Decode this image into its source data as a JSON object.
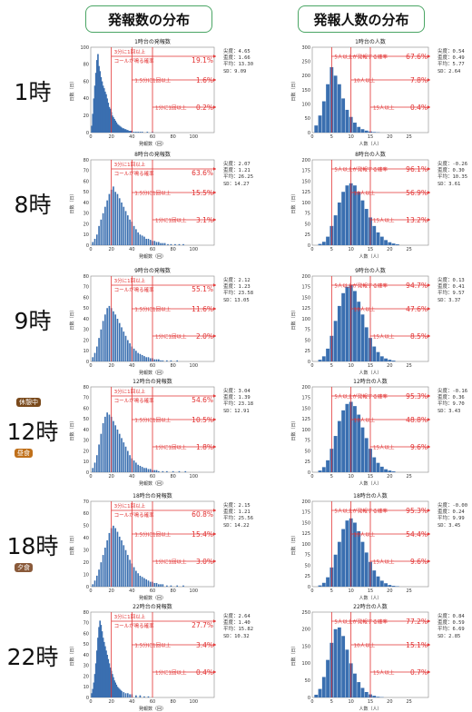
{
  "headers": {
    "left": "発報数の分布",
    "right": "発報人数の分布"
  },
  "badges": {
    "kyukei": "休憩中",
    "chushoku": "昼食",
    "yushoku": "夕食"
  },
  "stat_labels": [
    "尖度",
    "歪度",
    "平均",
    "SD"
  ],
  "left_axis": {
    "xlabel": "発報数（回）",
    "ylabel": "日数（日）"
  },
  "right_axis": {
    "xlabel": "人数（人）",
    "ylabel": "日数（日）"
  },
  "rows": [
    {
      "hour_label": "1時",
      "left": {
        "title": "1時台の発報数",
        "kurtosis": "4.65",
        "skewness": "1.66",
        "mean": "13.30",
        "sd": "9.09",
        "ann1a": "3分に1回以上",
        "ann1b": "コールが鳴る確率",
        "p1": "19.1%",
        "ann2": "1.5分に1回以上",
        "p2": "1.6%",
        "ann3": "1分に1回以上",
        "p3": "0.2%"
      },
      "right": {
        "title": "1時台の人数",
        "kurtosis": "0.54",
        "skewness": "0.49",
        "mean": "5.77",
        "sd": "2.64",
        "ann1": "5人以上が発報する確率",
        "p1": "67.6%",
        "ann2": "10人以上",
        "p2": "7.8%",
        "ann3": "15人以上",
        "p3": "0.4%"
      }
    },
    {
      "hour_label": "8時",
      "left": {
        "title": "8時台の発報数",
        "kurtosis": "2.07",
        "skewness": "1.21",
        "mean": "26.25",
        "sd": "14.27",
        "ann1a": "3分に1回以上",
        "ann1b": "コールが鳴る確率",
        "p1": "63.6%",
        "ann2": "1.5分に1回以上",
        "p2": "15.5%",
        "ann3": "1分に1回以上",
        "p3": "3.1%"
      },
      "right": {
        "title": "8時台の人数",
        "kurtosis": "-0.26",
        "skewness": "0.30",
        "mean": "10.35",
        "sd": "3.61",
        "ann1": "5人以上が発報する確率",
        "p1": "96.1%",
        "ann2": "10人以上",
        "p2": "56.9%",
        "ann3": "15人以上",
        "p3": "13.2%"
      }
    },
    {
      "hour_label": "9時",
      "left": {
        "title": "9時台の発報数",
        "kurtosis": "2.12",
        "skewness": "1.23",
        "mean": "23.58",
        "sd": "13.05",
        "ann1a": "3分に1回以上",
        "ann1b": "コールが鳴る確率",
        "p1": "55.1%",
        "ann2": "1.5分に1回以上",
        "p2": "11.6%",
        "ann3": "1分に1回以上",
        "p3": "2.0%"
      },
      "right": {
        "title": "9時台の人数",
        "kurtosis": "0.13",
        "skewness": "0.41",
        "mean": "9.57",
        "sd": "3.37",
        "ann1": "5人以上が発報する確率",
        "p1": "94.7%",
        "ann2": "10人以上",
        "p2": "47.6%",
        "ann3": "15人以上",
        "p3": "8.5%"
      }
    },
    {
      "hour_label": "12時",
      "left": {
        "title": "12時台の発報数",
        "kurtosis": "3.04",
        "skewness": "1.39",
        "mean": "23.18",
        "sd": "12.91",
        "ann1a": "3分に1回以上",
        "ann1b": "コールが鳴る確率",
        "p1": "54.6%",
        "ann2": "1.5分に1回以上",
        "p2": "10.5%",
        "ann3": "1分に1回以上",
        "p3": "1.8%"
      },
      "right": {
        "title": "12時台の人数",
        "kurtosis": "-0.16",
        "skewness": "0.36",
        "mean": "9.70",
        "sd": "3.43",
        "ann1": "5人以上が発報する確率",
        "p1": "95.3%",
        "ann2": "10人以上",
        "p2": "48.8%",
        "ann3": "15人以上",
        "p3": "9.6%"
      }
    },
    {
      "hour_label": "18時",
      "left": {
        "title": "18時台の発報数",
        "kurtosis": "2.15",
        "skewness": "1.21",
        "mean": "25.56",
        "sd": "14.22",
        "ann1a": "3分に1回以上",
        "ann1b": "コールが鳴る確率",
        "p1": "60.8%",
        "ann2": "1.5分に1回以上",
        "p2": "15.4%",
        "ann3": "1分に1回以上",
        "p3": "3.0%"
      },
      "right": {
        "title": "18時台の人数",
        "kurtosis": "-0.00",
        "skewness": "0.24",
        "mean": "9.99",
        "sd": "3.45",
        "ann1": "5人以上が発報する確率",
        "p1": "95.3%",
        "ann2": "10人以上",
        "p2": "54.4%",
        "ann3": "15人以上",
        "p3": "9.6%"
      }
    },
    {
      "hour_label": "22時",
      "left": {
        "title": "22時台の発報数",
        "kurtosis": "2.64",
        "skewness": "1.40",
        "mean": "15.82",
        "sd": "10.32",
        "ann1a": "3分に1回以上",
        "ann1b": "コールが鳴る確率",
        "p1": "27.7%",
        "ann2": "1.5分に1回以上",
        "p2": "3.4%",
        "ann3": "1分に1回以上",
        "p3": "0.4%"
      },
      "right": {
        "title": "22時台の人数",
        "kurtosis": "0.84",
        "skewness": "0.59",
        "mean": "6.69",
        "sd": "2.85",
        "ann1": "5人以上が発報する確率",
        "p1": "77.2%",
        "ann2": "10人以上",
        "p2": "15.1%",
        "ann3": "15人以上",
        "p3": "0.7%"
      }
    }
  ],
  "chart_data": [
    {
      "type": "bar",
      "title": "1時台の発報数",
      "xlabel": "発報数（回）",
      "ylabel": "日数（日）",
      "xlim": [
        0,
        120
      ],
      "ylim": [
        0,
        100
      ],
      "xticks": [
        0,
        20,
        40,
        60,
        80,
        100
      ],
      "yticks": [
        0,
        20,
        40,
        60,
        80,
        100
      ],
      "thresholds": [
        20,
        40,
        60
      ],
      "x": [
        1,
        2,
        3,
        4,
        5,
        6,
        7,
        8,
        9,
        10,
        11,
        12,
        13,
        14,
        15,
        16,
        17,
        18,
        19,
        20,
        21,
        22,
        23,
        24,
        25,
        26,
        27,
        28,
        29,
        30,
        31,
        32,
        33,
        34,
        35,
        36,
        37,
        38,
        39,
        40,
        42,
        44,
        46,
        48,
        50,
        55,
        60
      ],
      "values": [
        8,
        22,
        40,
        55,
        70,
        85,
        92,
        78,
        72,
        65,
        60,
        55,
        52,
        48,
        45,
        40,
        35,
        30,
        28,
        24,
        20,
        18,
        16,
        14,
        12,
        10,
        9,
        8,
        7,
        6,
        5,
        5,
        4,
        4,
        3,
        3,
        2,
        2,
        2,
        2,
        1,
        1,
        1,
        1,
        1,
        1,
        1
      ]
    },
    {
      "type": "bar",
      "title": "1時台の人数",
      "xlabel": "人数（人）",
      "ylabel": "日数（日）",
      "xlim": [
        0,
        30
      ],
      "ylim": [
        0,
        300
      ],
      "xticks": [
        0,
        5,
        10,
        15,
        20,
        25
      ],
      "yticks": [
        0,
        50,
        100,
        150,
        200,
        250,
        300
      ],
      "thresholds": [
        5,
        10,
        15
      ],
      "x": [
        1,
        2,
        3,
        4,
        5,
        6,
        7,
        8,
        9,
        10,
        11,
        12,
        13,
        14,
        15,
        16,
        17
      ],
      "values": [
        25,
        60,
        110,
        170,
        230,
        200,
        170,
        120,
        80,
        55,
        35,
        20,
        12,
        7,
        4,
        2,
        1
      ]
    },
    {
      "type": "bar",
      "title": "8時台の発報数",
      "xlabel": "発報数（回）",
      "ylabel": "日数（日）",
      "xlim": [
        0,
        120
      ],
      "ylim": [
        0,
        80
      ],
      "xticks": [
        0,
        20,
        40,
        60,
        80,
        100
      ],
      "yticks": [
        0,
        10,
        20,
        30,
        40,
        50,
        60,
        70,
        80
      ],
      "thresholds": [
        20,
        40,
        60
      ],
      "x": [
        2,
        4,
        6,
        8,
        10,
        12,
        14,
        16,
        18,
        20,
        22,
        24,
        26,
        28,
        30,
        32,
        34,
        36,
        38,
        40,
        42,
        44,
        46,
        48,
        50,
        52,
        54,
        56,
        58,
        60,
        62,
        64,
        66,
        68,
        70,
        72,
        75,
        78,
        82,
        86,
        90
      ],
      "values": [
        3,
        6,
        10,
        18,
        24,
        30,
        36,
        42,
        48,
        52,
        55,
        50,
        48,
        44,
        40,
        36,
        32,
        28,
        24,
        22,
        18,
        15,
        12,
        10,
        9,
        8,
        6,
        6,
        5,
        4,
        4,
        3,
        3,
        2,
        2,
        2,
        1,
        1,
        1,
        1,
        1
      ]
    },
    {
      "type": "bar",
      "title": "8時台の人数",
      "xlabel": "人数（人）",
      "ylabel": "日数（日）",
      "xlim": [
        0,
        30
      ],
      "ylim": [
        0,
        200
      ],
      "xticks": [
        0,
        5,
        10,
        15,
        20,
        25
      ],
      "yticks": [
        0,
        25,
        50,
        75,
        100,
        125,
        150,
        175,
        200
      ],
      "thresholds": [
        5,
        10,
        15
      ],
      "x": [
        2,
        3,
        4,
        5,
        6,
        7,
        8,
        9,
        10,
        11,
        12,
        13,
        14,
        15,
        16,
        17,
        18,
        19,
        20,
        21,
        22
      ],
      "values": [
        3,
        8,
        20,
        45,
        70,
        100,
        125,
        140,
        145,
        140,
        125,
        105,
        85,
        65,
        45,
        30,
        20,
        12,
        7,
        4,
        2
      ]
    },
    {
      "type": "bar",
      "title": "9時台の発報数",
      "xlabel": "発報数（回）",
      "ylabel": "日数（日）",
      "xlim": [
        0,
        120
      ],
      "ylim": [
        0,
        80
      ],
      "xticks": [
        0,
        20,
        40,
        60,
        80,
        100
      ],
      "yticks": [
        0,
        10,
        20,
        30,
        40,
        50,
        60,
        70,
        80
      ],
      "thresholds": [
        20,
        40,
        60
      ],
      "x": [
        2,
        4,
        6,
        8,
        10,
        12,
        14,
        16,
        18,
        20,
        22,
        24,
        26,
        28,
        30,
        32,
        34,
        36,
        38,
        40,
        42,
        44,
        46,
        48,
        50,
        52,
        54,
        56,
        58,
        60,
        62,
        64,
        66,
        68,
        70,
        74,
        78,
        84
      ],
      "values": [
        4,
        8,
        14,
        22,
        30,
        38,
        44,
        50,
        52,
        50,
        47,
        44,
        40,
        36,
        32,
        28,
        24,
        20,
        17,
        14,
        12,
        10,
        8,
        7,
        6,
        5,
        4,
        4,
        3,
        3,
        2,
        2,
        2,
        1,
        1,
        1,
        1,
        1
      ]
    },
    {
      "type": "bar",
      "title": "9時台の人数",
      "xlabel": "人数（人）",
      "ylabel": "日数（日）",
      "xlim": [
        0,
        30
      ],
      "ylim": [
        0,
        200
      ],
      "xticks": [
        0,
        5,
        10,
        15,
        20,
        25
      ],
      "yticks": [
        0,
        25,
        50,
        75,
        100,
        125,
        150,
        175,
        200
      ],
      "thresholds": [
        5,
        10,
        15
      ],
      "x": [
        2,
        3,
        4,
        5,
        6,
        7,
        8,
        9,
        10,
        11,
        12,
        13,
        14,
        15,
        16,
        17,
        18,
        19,
        20,
        21
      ],
      "values": [
        4,
        12,
        30,
        60,
        95,
        130,
        160,
        175,
        180,
        165,
        140,
        110,
        80,
        55,
        35,
        22,
        12,
        7,
        4,
        2
      ]
    },
    {
      "type": "bar",
      "title": "12時台の発報数",
      "xlabel": "発報数（回）",
      "ylabel": "日数（日）",
      "xlim": [
        0,
        120
      ],
      "ylim": [
        0,
        80
      ],
      "xticks": [
        0,
        20,
        40,
        60,
        80,
        100
      ],
      "yticks": [
        0,
        10,
        20,
        30,
        40,
        50,
        60,
        70,
        80
      ],
      "thresholds": [
        20,
        40,
        60
      ],
      "x": [
        2,
        4,
        6,
        8,
        10,
        12,
        14,
        16,
        18,
        20,
        22,
        24,
        26,
        28,
        30,
        32,
        34,
        36,
        38,
        40,
        42,
        44,
        46,
        48,
        50,
        52,
        54,
        56,
        58,
        60,
        62,
        64,
        66,
        70,
        74,
        80,
        86,
        92
      ],
      "values": [
        4,
        9,
        16,
        26,
        36,
        46,
        52,
        56,
        54,
        52,
        48,
        44,
        40,
        36,
        32,
        28,
        24,
        20,
        16,
        13,
        11,
        9,
        7,
        6,
        5,
        4,
        4,
        3,
        3,
        2,
        2,
        2,
        1,
        1,
        1,
        1,
        1,
        1
      ]
    },
    {
      "type": "bar",
      "title": "12時台の人数",
      "xlabel": "人数（人）",
      "ylabel": "日数（日）",
      "xlim": [
        0,
        30
      ],
      "ylim": [
        0,
        200
      ],
      "xticks": [
        0,
        5,
        10,
        15,
        20,
        25
      ],
      "yticks": [
        0,
        25,
        50,
        75,
        100,
        125,
        150,
        175,
        200
      ],
      "thresholds": [
        5,
        10,
        15
      ],
      "x": [
        2,
        3,
        4,
        5,
        6,
        7,
        8,
        9,
        10,
        11,
        12,
        13,
        14,
        15,
        16,
        17,
        18,
        19,
        20,
        21
      ],
      "values": [
        4,
        12,
        28,
        55,
        85,
        120,
        145,
        160,
        165,
        155,
        135,
        105,
        80,
        55,
        35,
        22,
        13,
        7,
        4,
        2
      ]
    },
    {
      "type": "bar",
      "title": "18時台の発報数",
      "xlabel": "発報数（回）",
      "ylabel": "日数（日）",
      "xlim": [
        0,
        120
      ],
      "ylim": [
        0,
        70
      ],
      "xticks": [
        0,
        20,
        40,
        60,
        80,
        100
      ],
      "yticks": [
        0,
        10,
        20,
        30,
        40,
        50,
        60,
        70
      ],
      "thresholds": [
        20,
        40,
        60
      ],
      "x": [
        2,
        4,
        6,
        8,
        10,
        12,
        14,
        16,
        18,
        20,
        22,
        24,
        26,
        28,
        30,
        32,
        34,
        36,
        38,
        40,
        42,
        44,
        46,
        48,
        50,
        52,
        54,
        56,
        58,
        60,
        62,
        64,
        66,
        68,
        70,
        74,
        78,
        84,
        90
      ],
      "values": [
        2,
        5,
        9,
        14,
        20,
        26,
        32,
        38,
        44,
        48,
        50,
        48,
        45,
        41,
        38,
        34,
        30,
        26,
        22,
        19,
        16,
        13,
        11,
        9,
        8,
        7,
        6,
        5,
        4,
        4,
        3,
        3,
        2,
        2,
        2,
        1,
        1,
        1,
        1
      ]
    },
    {
      "type": "bar",
      "title": "18時台の人数",
      "xlabel": "人数（人）",
      "ylabel": "日数（日）",
      "xlim": [
        0,
        30
      ],
      "ylim": [
        0,
        200
      ],
      "xticks": [
        0,
        5,
        10,
        15,
        20,
        25
      ],
      "yticks": [
        0,
        25,
        50,
        75,
        100,
        125,
        150,
        175,
        200
      ],
      "thresholds": [
        5,
        10,
        15
      ],
      "x": [
        2,
        3,
        4,
        5,
        6,
        7,
        8,
        9,
        10,
        11,
        12,
        13,
        14,
        15,
        16,
        17,
        18,
        19,
        20,
        21,
        22
      ],
      "values": [
        3,
        9,
        22,
        45,
        75,
        105,
        135,
        155,
        160,
        150,
        130,
        105,
        80,
        58,
        38,
        24,
        14,
        8,
        4,
        2,
        1
      ]
    },
    {
      "type": "bar",
      "title": "22時台の発報数",
      "xlabel": "発報数（回）",
      "ylabel": "日数（日）",
      "xlim": [
        0,
        120
      ],
      "ylim": [
        0,
        80
      ],
      "xticks": [
        0,
        20,
        40,
        60,
        80,
        100
      ],
      "yticks": [
        0,
        10,
        20,
        30,
        40,
        50,
        60,
        70,
        80
      ],
      "thresholds": [
        20,
        40,
        60
      ],
      "x": [
        1,
        2,
        3,
        4,
        5,
        6,
        7,
        8,
        9,
        10,
        11,
        12,
        13,
        14,
        15,
        16,
        17,
        18,
        19,
        20,
        21,
        22,
        23,
        24,
        25,
        26,
        27,
        28,
        29,
        30,
        32,
        34,
        36,
        38,
        40,
        44,
        48,
        52,
        56
      ],
      "values": [
        4,
        8,
        14,
        22,
        32,
        44,
        56,
        66,
        72,
        68,
        62,
        56,
        52,
        48,
        44,
        40,
        36,
        32,
        28,
        25,
        22,
        19,
        16,
        14,
        12,
        10,
        9,
        8,
        7,
        6,
        5,
        4,
        4,
        3,
        3,
        2,
        2,
        1,
        1
      ]
    },
    {
      "type": "bar",
      "title": "22時台の人数",
      "xlabel": "人数（人）",
      "ylabel": "日数（日）",
      "xlim": [
        0,
        30
      ],
      "ylim": [
        0,
        250
      ],
      "xticks": [
        0,
        5,
        10,
        15,
        20,
        25
      ],
      "yticks": [
        0,
        50,
        100,
        150,
        200,
        250
      ],
      "thresholds": [
        5,
        10,
        15
      ],
      "x": [
        1,
        2,
        3,
        4,
        5,
        6,
        7,
        8,
        9,
        10,
        11,
        12,
        13,
        14,
        15,
        16,
        17,
        18
      ],
      "values": [
        8,
        25,
        60,
        110,
        160,
        200,
        205,
        180,
        140,
        100,
        70,
        45,
        28,
        16,
        9,
        5,
        2,
        1
      ]
    }
  ]
}
